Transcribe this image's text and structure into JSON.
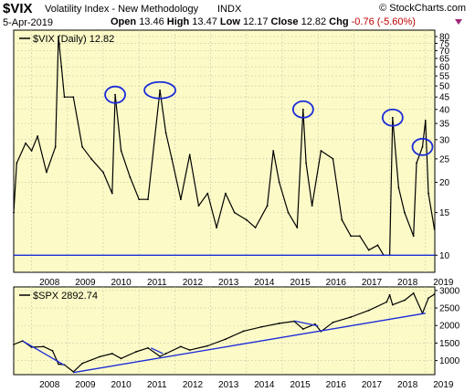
{
  "header": {
    "symbol": "$VIX",
    "name": "Volatility Index - New Methodology",
    "exchange": "INDX",
    "brand": "© StockCharts.com",
    "date": "5-Apr-2019",
    "open_label": "Open",
    "open": "13.46",
    "high_label": "High",
    "high": "13.47",
    "low_label": "Low",
    "low": "12.17",
    "close_label": "Close",
    "close": "12.82",
    "chg_label": "Chg",
    "chg": "-0.76 (-5.60%)"
  },
  "colors": {
    "panel_bg": "#fcfbc8",
    "series": "#000000",
    "trendline": "#1a2ad8",
    "circle": "#1a2ad8",
    "change": "#c00000"
  },
  "chart_data": [
    {
      "type": "line",
      "legend": "$VIX (Daily) 12.82",
      "y_scale": "log",
      "ylim": [
        8.5,
        85
      ],
      "y_ticks": [
        10,
        15,
        20,
        25,
        30,
        35,
        40,
        45,
        50,
        55,
        60,
        65,
        70,
        75,
        80
      ],
      "x_ticks": [
        "2008",
        "2009",
        "2010",
        "2011",
        "2012",
        "2013",
        "2014",
        "2015",
        "2016",
        "2017",
        "2018",
        "2019"
      ],
      "xlim": [
        "2007-07-01",
        "2019-04-05"
      ],
      "x": [
        "2007-07",
        "2007-08",
        "2007-11",
        "2008-01",
        "2008-03",
        "2008-06",
        "2008-09",
        "2008-10",
        "2008-11",
        "2008-12",
        "2009-03",
        "2009-06",
        "2009-09",
        "2010-01",
        "2010-04",
        "2010-05",
        "2010-07",
        "2010-10",
        "2011-01",
        "2011-04",
        "2011-08",
        "2011-10",
        "2011-12",
        "2012-03",
        "2012-06",
        "2012-09",
        "2012-12",
        "2013-03",
        "2013-06",
        "2013-09",
        "2014-01",
        "2014-04",
        "2014-08",
        "2014-10",
        "2014-12",
        "2015-03",
        "2015-06",
        "2015-08",
        "2015-09",
        "2015-11",
        "2016-02",
        "2016-06",
        "2016-09",
        "2016-12",
        "2017-03",
        "2017-06",
        "2017-09",
        "2017-11",
        "2018-01",
        "2018-02",
        "2018-04",
        "2018-06",
        "2018-09",
        "2018-10",
        "2018-12",
        "2019-01",
        "2019-02",
        "2019-04"
      ],
      "values": [
        15,
        24,
        29,
        27,
        31,
        22,
        28,
        80,
        60,
        45,
        45,
        28,
        25,
        22,
        18,
        46,
        27,
        21,
        17,
        17,
        48,
        32,
        25,
        17,
        26,
        16,
        18,
        13,
        18,
        15,
        14,
        13,
        16,
        27,
        20,
        15,
        13,
        40,
        24,
        16,
        27,
        25,
        14,
        12,
        12,
        10.5,
        11,
        10,
        10,
        37,
        19,
        15,
        12,
        24,
        28,
        36,
        18,
        12.8
      ],
      "baseline": {
        "value": 10
      },
      "circles_near": [
        "2010-05",
        "2011-08",
        "2015-08",
        "2018-02",
        "2018-12"
      ]
    },
    {
      "type": "line",
      "legend": "$SPX 2892.74",
      "ylim": [
        600,
        3100
      ],
      "y_ticks": [
        1000,
        1500,
        2000,
        2500,
        3000
      ],
      "x_ticks": [
        "2008",
        "2009",
        "2010",
        "2011",
        "2012",
        "2013",
        "2014",
        "2015",
        "2016",
        "2017",
        "2018",
        "2019"
      ],
      "xlim": [
        "2007-07-01",
        "2019-04-05"
      ],
      "x": [
        "2007-07",
        "2007-10",
        "2008-01",
        "2008-05",
        "2008-08",
        "2008-10",
        "2008-12",
        "2009-03",
        "2009-06",
        "2009-12",
        "2010-04",
        "2010-07",
        "2010-12",
        "2011-04",
        "2011-08",
        "2011-10",
        "2012-03",
        "2012-06",
        "2012-12",
        "2013-06",
        "2013-12",
        "2014-06",
        "2014-12",
        "2015-05",
        "2015-08",
        "2015-12",
        "2016-02",
        "2016-06",
        "2016-12",
        "2017-06",
        "2017-12",
        "2018-01",
        "2018-02",
        "2018-06",
        "2018-09",
        "2018-12",
        "2019-02",
        "2019-04"
      ],
      "values": [
        1460,
        1560,
        1380,
        1400,
        1280,
        900,
        880,
        680,
        920,
        1115,
        1200,
        1060,
        1250,
        1360,
        1120,
        1200,
        1400,
        1300,
        1420,
        1610,
        1840,
        1960,
        2060,
        2120,
        1900,
        2040,
        1830,
        2090,
        2240,
        2430,
        2670,
        2870,
        2590,
        2720,
        2920,
        2350,
        2780,
        2892.74
      ],
      "trendlines": [
        {
          "x": [
            "2007-10",
            "2008-12"
          ],
          "y": [
            1560,
            870
          ]
        },
        {
          "x": [
            "2009-03",
            "2019-01"
          ],
          "y": [
            660,
            2350
          ]
        },
        {
          "x": [
            "2011-05",
            "2011-09"
          ],
          "y": [
            1360,
            1200
          ]
        },
        {
          "x": [
            "2015-05",
            "2016-01"
          ],
          "y": [
            2130,
            1990
          ]
        }
      ]
    }
  ]
}
